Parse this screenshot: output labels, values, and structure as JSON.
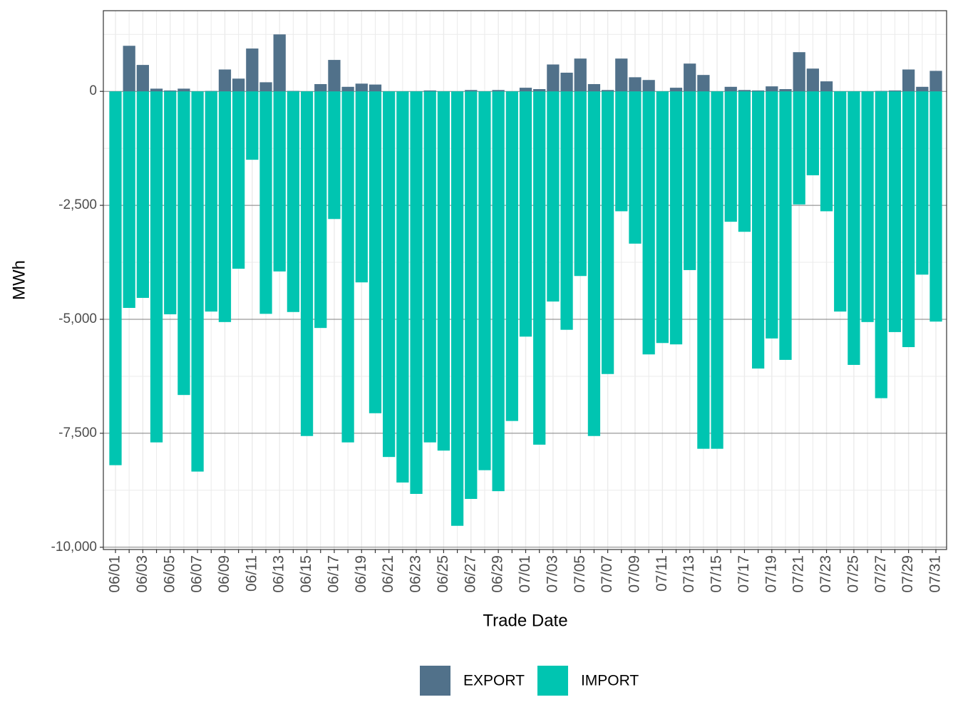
{
  "chart_data": {
    "type": "bar",
    "x_label": "Trade Date",
    "y_label": "MWh",
    "categories": [
      "06/01",
      null,
      "06/03",
      null,
      "06/05",
      null,
      "06/07",
      null,
      "06/09",
      null,
      "06/11",
      null,
      "06/13",
      null,
      "06/15",
      null,
      "06/17",
      null,
      "06/19",
      null,
      "06/21",
      null,
      "06/23",
      null,
      "06/25",
      null,
      "06/27",
      null,
      "06/29",
      null,
      "07/01",
      null,
      "07/03",
      null,
      "07/05",
      null,
      "07/07",
      null,
      "07/09",
      null,
      "07/11",
      null,
      "07/13",
      null,
      "07/15",
      null,
      "07/17",
      null,
      "07/19",
      null,
      "07/21",
      null,
      "07/23",
      null,
      "07/25",
      null,
      "07/27",
      null,
      "07/29",
      null,
      "07/31"
    ],
    "series": [
      {
        "name": "EXPORT",
        "color": "#51718a",
        "values": [
          0,
          1000,
          580,
          60,
          20,
          60,
          0,
          10,
          480,
          280,
          940,
          200,
          1250,
          10,
          0,
          160,
          690,
          100,
          170,
          150,
          0,
          0,
          0,
          20,
          0,
          0,
          30,
          0,
          30,
          0,
          80,
          50,
          590,
          410,
          720,
          160,
          30,
          720,
          310,
          250,
          0,
          80,
          610,
          360,
          0,
          100,
          30,
          20,
          110,
          50,
          860,
          500,
          220,
          0,
          0,
          0,
          10,
          20,
          480,
          100,
          450
        ]
      },
      {
        "name": "IMPORT",
        "color": "#00c5b1",
        "values": [
          -8200,
          -4750,
          -4530,
          -7700,
          -4890,
          -6660,
          -8340,
          -4830,
          -5060,
          -3890,
          -1500,
          -4880,
          -3950,
          -4840,
          -7560,
          -5190,
          -2800,
          -7700,
          -4190,
          -7060,
          -8020,
          -8580,
          -8830,
          -7700,
          -7880,
          -9530,
          -8940,
          -8310,
          -8770,
          -7230,
          -5380,
          -7750,
          -4610,
          -5230,
          -4050,
          -7560,
          -6200,
          -2630,
          -3340,
          -5770,
          -5520,
          -5550,
          -3920,
          -7840,
          -7840,
          -2860,
          -3080,
          -6080,
          -5420,
          -5890,
          -2480,
          -1840,
          -2630,
          -4830,
          -6000,
          -5060,
          -6730,
          -5280,
          -5610,
          -4020,
          -5050
        ]
      }
    ],
    "ylim": [
      -10050,
      1770
    ],
    "yticks": [
      {
        "value": -10000,
        "label": "-10,000"
      },
      {
        "value": -7500,
        "label": "-7,500"
      },
      {
        "value": -5000,
        "label": "-5,000"
      },
      {
        "value": -2500,
        "label": "-2,500"
      },
      0
    ],
    "grid": true,
    "legend": "bottom"
  }
}
